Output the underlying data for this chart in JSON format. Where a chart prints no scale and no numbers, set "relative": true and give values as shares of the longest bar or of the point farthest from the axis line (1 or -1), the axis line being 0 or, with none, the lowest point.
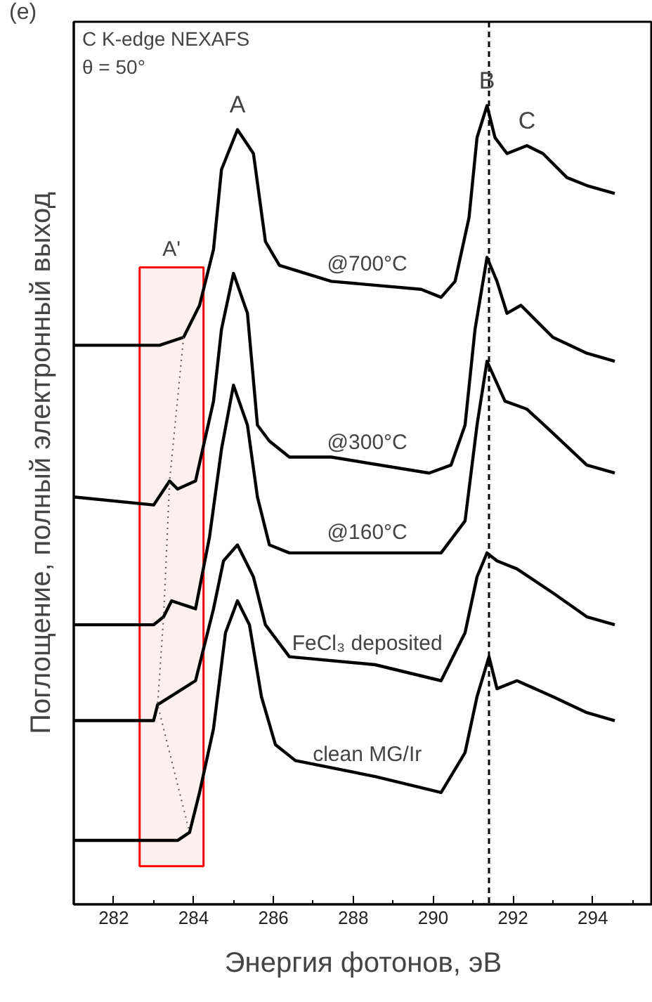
{
  "chart_data": {
    "type": "line",
    "relative": true,
    "xlabel": "Энергия фотонов, эВ",
    "ylabel": "Поглощение, полный электронный выход",
    "xlim": [
      281.0,
      295.5
    ],
    "xticks": [
      282,
      284,
      286,
      288,
      290,
      292,
      294
    ],
    "grid": false,
    "marker": "none",
    "line_style": "solid",
    "tick_labels": "x",
    "series": [
      {
        "name": "@700°C",
        "color": "#000000",
        "x": [
          281.0,
          283.15,
          283.75,
          284.15,
          284.5,
          284.7,
          285.1,
          285.5,
          285.8,
          286.15,
          287.45,
          289.7,
          290.2,
          290.55,
          290.9,
          291.1,
          291.35,
          291.55,
          291.85,
          292.35,
          292.75,
          293.35,
          293.85,
          294.55
        ],
        "values": [
          0.7,
          0.7,
          0.71,
          0.75,
          0.82,
          0.92,
          0.97,
          0.94,
          0.83,
          0.8,
          0.78,
          0.77,
          0.76,
          0.78,
          0.86,
          0.96,
          1.0,
          0.96,
          0.94,
          0.95,
          0.94,
          0.91,
          0.9,
          0.89
        ]
      },
      {
        "name": "@300°C",
        "color": "#000000",
        "x": [
          281.0,
          283.0,
          283.4,
          283.6,
          284.05,
          284.5,
          284.7,
          285.0,
          285.35,
          285.6,
          285.9,
          286.4,
          287.45,
          289.9,
          290.45,
          290.8,
          291.05,
          291.35,
          291.6,
          291.85,
          292.2,
          293.0,
          293.85,
          294.55
        ],
        "values": [
          0.51,
          0.5,
          0.53,
          0.52,
          0.53,
          0.63,
          0.72,
          0.79,
          0.74,
          0.6,
          0.58,
          0.56,
          0.56,
          0.54,
          0.55,
          0.6,
          0.72,
          0.81,
          0.78,
          0.74,
          0.75,
          0.71,
          0.69,
          0.68
        ]
      },
      {
        "name": "@160°C",
        "color": "#000000",
        "x": [
          281.0,
          283.0,
          283.25,
          283.45,
          284.05,
          284.4,
          284.7,
          285.0,
          285.35,
          285.6,
          285.9,
          286.4,
          290.2,
          290.8,
          291.1,
          291.35,
          291.8,
          292.35,
          293.0,
          293.85,
          294.55
        ],
        "values": [
          0.35,
          0.35,
          0.36,
          0.38,
          0.37,
          0.46,
          0.57,
          0.65,
          0.6,
          0.51,
          0.45,
          0.44,
          0.44,
          0.48,
          0.6,
          0.68,
          0.63,
          0.62,
          0.59,
          0.55,
          0.54
        ]
      },
      {
        "name": "FeCl₃ deposited",
        "color": "#000000",
        "x": [
          281.0,
          283.0,
          283.1,
          284.05,
          284.5,
          284.75,
          285.1,
          285.5,
          285.8,
          286.4,
          288.55,
          290.2,
          290.8,
          291.1,
          291.35,
          291.6,
          292.1,
          293.0,
          293.85,
          294.55
        ],
        "values": [
          0.23,
          0.23,
          0.25,
          0.28,
          0.37,
          0.43,
          0.45,
          0.41,
          0.35,
          0.31,
          0.3,
          0.28,
          0.34,
          0.41,
          0.44,
          0.43,
          0.42,
          0.39,
          0.36,
          0.35
        ]
      },
      {
        "name": "clean MG/Ir",
        "color": "#000000",
        "x": [
          281.0,
          283.6,
          283.9,
          284.15,
          284.5,
          284.8,
          285.1,
          285.4,
          285.7,
          286.05,
          286.55,
          288.55,
          290.2,
          290.8,
          291.1,
          291.4,
          291.6,
          292.1,
          293.0,
          293.85,
          294.55
        ],
        "values": [
          0.08,
          0.08,
          0.09,
          0.14,
          0.22,
          0.34,
          0.38,
          0.35,
          0.26,
          0.2,
          0.18,
          0.16,
          0.14,
          0.19,
          0.26,
          0.31,
          0.27,
          0.28,
          0.26,
          0.24,
          0.23
        ]
      },
      {
        "color": "#555555",
        "line_style": "dotted",
        "x": [
          283.75,
          283.4,
          283.25,
          283.1,
          283.9
        ],
        "values": [
          0.71,
          0.53,
          0.36,
          0.25,
          0.09
        ]
      }
    ],
    "ref_lines": [
      {
        "axis": "x",
        "value": 291.4,
        "line_style": "dashed",
        "color": "#000000"
      }
    ],
    "bands": [
      {
        "axis": "x",
        "from": 282.65,
        "to": 284.25,
        "color": "#ff0000",
        "label": "A'"
      }
    ],
    "annotations": [
      "(e)",
      "C K-edge NEXAFS",
      "θ = 50°",
      {
        "text": "A",
        "x": 285.1,
        "y": 0.97
      },
      {
        "text": "B",
        "x": 291.35,
        "y": 1.0
      },
      {
        "text": "C",
        "x": 292.35,
        "y": 0.95
      }
    ]
  }
}
